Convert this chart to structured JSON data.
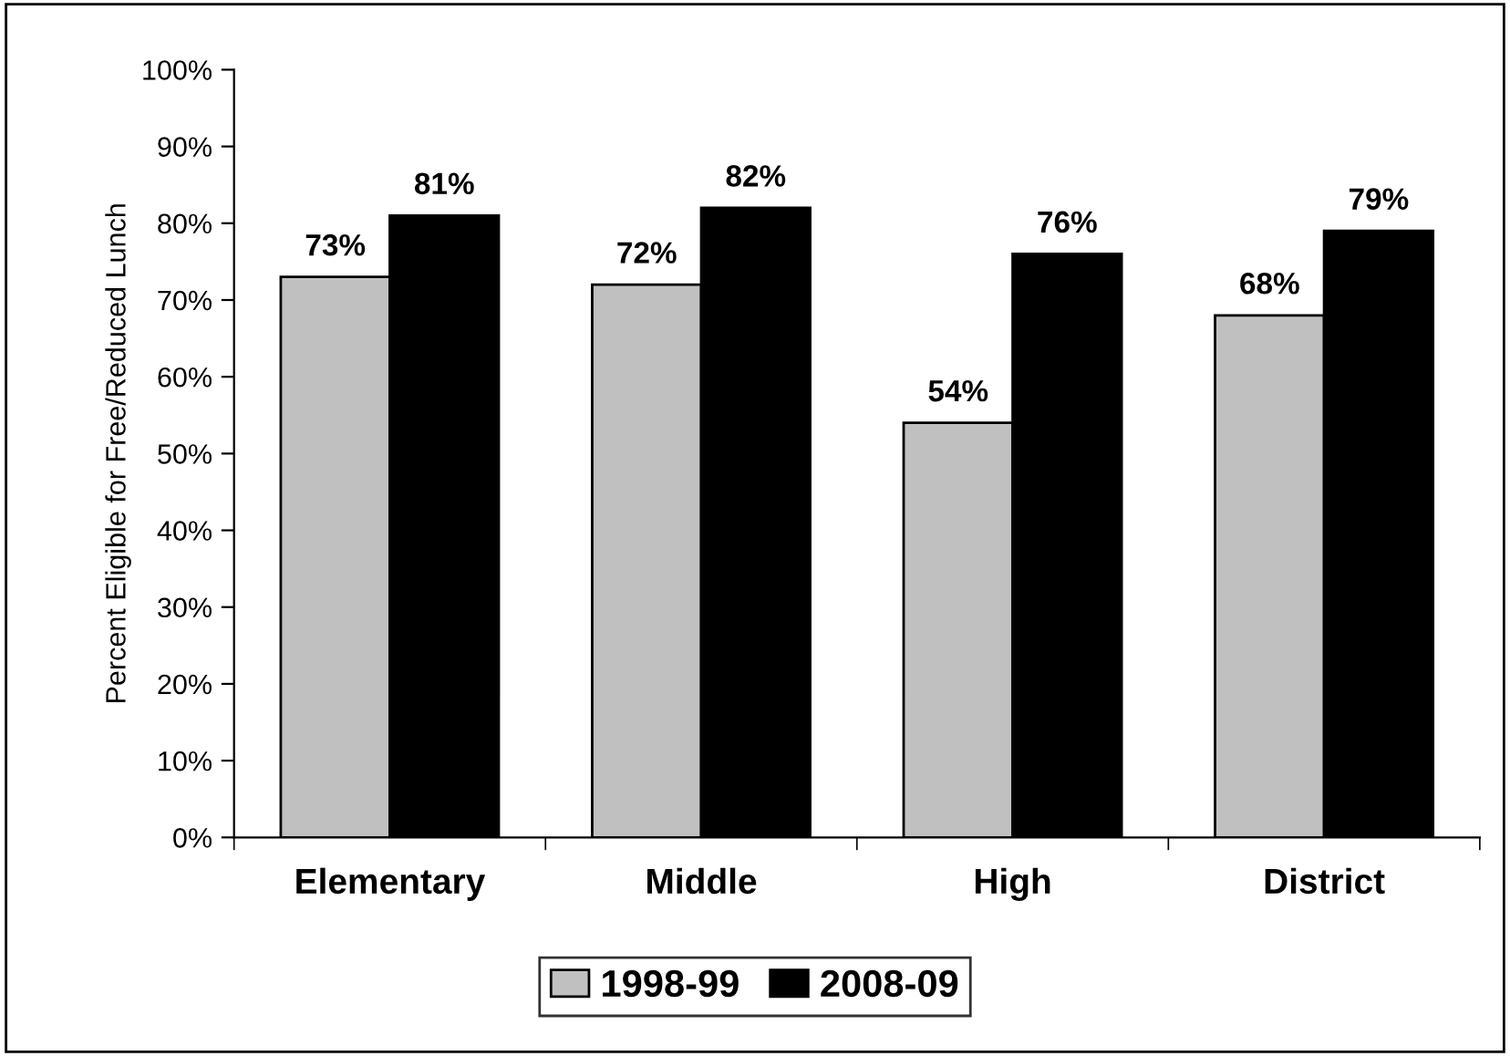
{
  "chart_data": {
    "type": "bar",
    "ylabel": "Percent Eligible for Free/Reduced Lunch",
    "categories": [
      "Elementary",
      "Middle",
      "High",
      "District"
    ],
    "series": [
      {
        "name": "1998-99",
        "color": "#c0c0c0",
        "values": [
          73,
          72,
          54,
          68
        ],
        "value_labels": [
          "73%",
          "72%",
          "54%",
          "68%"
        ]
      },
      {
        "name": "2008-09",
        "color": "#000000",
        "values": [
          81,
          82,
          76,
          79
        ],
        "value_labels": [
          "81%",
          "82%",
          "76%",
          "79%"
        ]
      }
    ],
    "ylim": [
      0,
      100
    ],
    "yticks": [
      {
        "value": 0,
        "label": "0%"
      },
      {
        "value": 10,
        "label": "10%"
      },
      {
        "value": 20,
        "label": "20%"
      },
      {
        "value": 30,
        "label": "30%"
      },
      {
        "value": 40,
        "label": "40%"
      },
      {
        "value": 50,
        "label": "50%"
      },
      {
        "value": 60,
        "label": "60%"
      },
      {
        "value": 70,
        "label": "70%"
      },
      {
        "value": 80,
        "label": "80%"
      },
      {
        "value": 90,
        "label": "90%"
      },
      {
        "value": 100,
        "label": "100%"
      }
    ],
    "grid": false,
    "legend": "bottom"
  }
}
